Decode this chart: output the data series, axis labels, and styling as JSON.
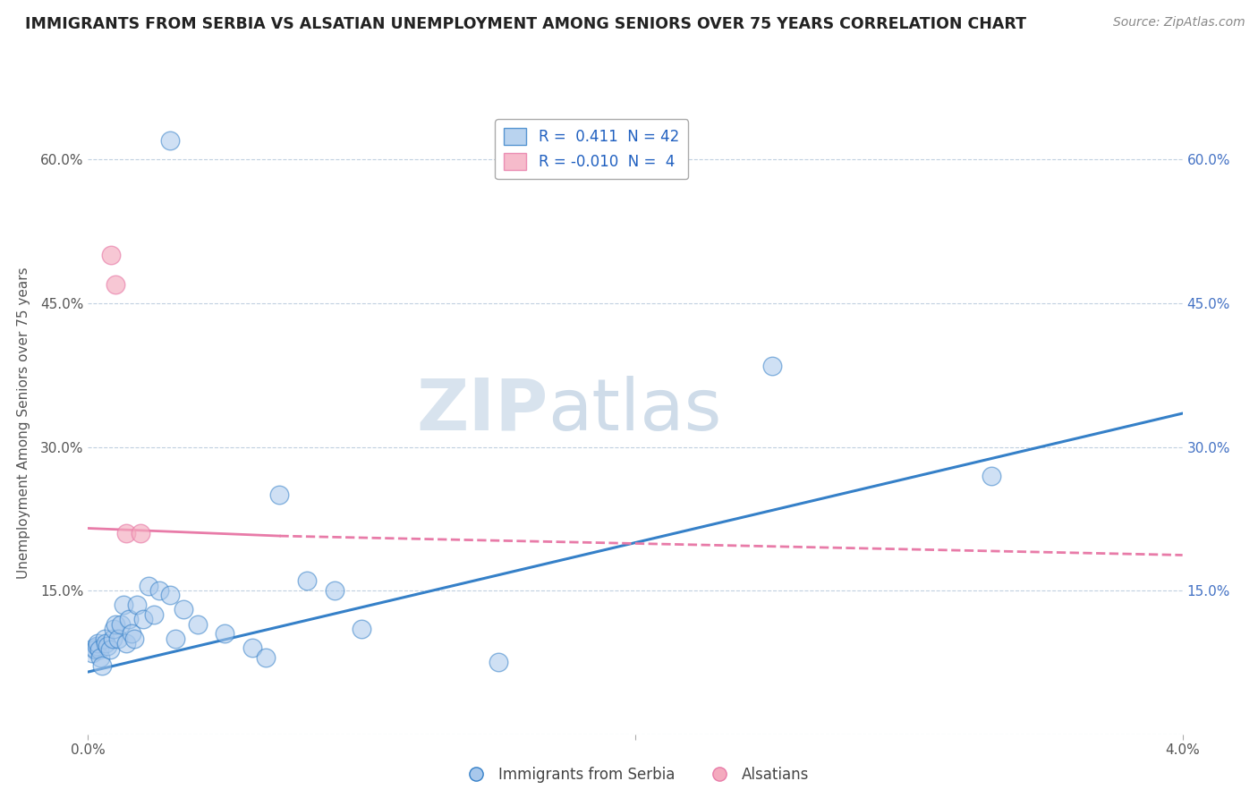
{
  "title": "IMMIGRANTS FROM SERBIA VS ALSATIAN UNEMPLOYMENT AMONG SENIORS OVER 75 YEARS CORRELATION CHART",
  "source": "Source: ZipAtlas.com",
  "ylabel": "Unemployment Among Seniors over 75 years",
  "y_ticks": [
    0.0,
    0.15,
    0.3,
    0.45,
    0.6
  ],
  "y_tick_labels": [
    "",
    "15.0%",
    "30.0%",
    "45.0%",
    "60.0%"
  ],
  "x_ticks": [
    0.0,
    0.04
  ],
  "x_tick_labels": [
    "0.0%",
    "4.0%"
  ],
  "xlim": [
    0.0,
    0.04
  ],
  "ylim": [
    0.0,
    0.65
  ],
  "legend_blue_R": "0.411",
  "legend_blue_N": "42",
  "legend_pink_R": "-0.010",
  "legend_pink_N": "4",
  "legend_label_blue": "Immigrants from Serbia",
  "legend_label_pink": "Alsatians",
  "watermark_zip": "ZIP",
  "watermark_atlas": "atlas",
  "blue_color": "#A8C8EC",
  "pink_color": "#F4AABE",
  "blue_line_color": "#3580C8",
  "pink_line_color": "#E87BA8",
  "blue_scatter_x": [
    0.00015,
    0.0002,
    0.00025,
    0.0003,
    0.00035,
    0.0004,
    0.00045,
    0.0005,
    0.0006,
    0.00065,
    0.0007,
    0.0008,
    0.0009,
    0.00095,
    0.001,
    0.0011,
    0.0012,
    0.0013,
    0.0014,
    0.0015,
    0.0016,
    0.0017,
    0.0018,
    0.002,
    0.0022,
    0.0024,
    0.0026,
    0.003,
    0.0032,
    0.0035,
    0.004,
    0.005,
    0.006,
    0.0065,
    0.007,
    0.008,
    0.009,
    0.01,
    0.015,
    0.025,
    0.033,
    0.003
  ],
  "blue_scatter_y": [
    0.085,
    0.09,
    0.088,
    0.092,
    0.095,
    0.088,
    0.08,
    0.072,
    0.1,
    0.095,
    0.092,
    0.088,
    0.1,
    0.11,
    0.115,
    0.1,
    0.115,
    0.135,
    0.095,
    0.12,
    0.105,
    0.1,
    0.135,
    0.12,
    0.155,
    0.125,
    0.15,
    0.145,
    0.1,
    0.13,
    0.115,
    0.105,
    0.09,
    0.08,
    0.25,
    0.16,
    0.15,
    0.11,
    0.075,
    0.385,
    0.27,
    0.62
  ],
  "pink_scatter_x": [
    0.00085,
    0.001,
    0.0014,
    0.0019
  ],
  "pink_scatter_y": [
    0.5,
    0.47,
    0.21,
    0.21
  ],
  "blue_line_x": [
    0.0,
    0.04
  ],
  "blue_line_y": [
    0.065,
    0.335
  ],
  "pink_line_x": [
    0.0,
    0.016
  ],
  "pink_line_y": [
    0.215,
    0.195
  ],
  "pink_dash_line_x": [
    0.014,
    0.04
  ],
  "pink_dash_line_y": [
    0.197,
    0.185
  ],
  "background_color": "#FFFFFF",
  "grid_color": "#C0D0E0"
}
